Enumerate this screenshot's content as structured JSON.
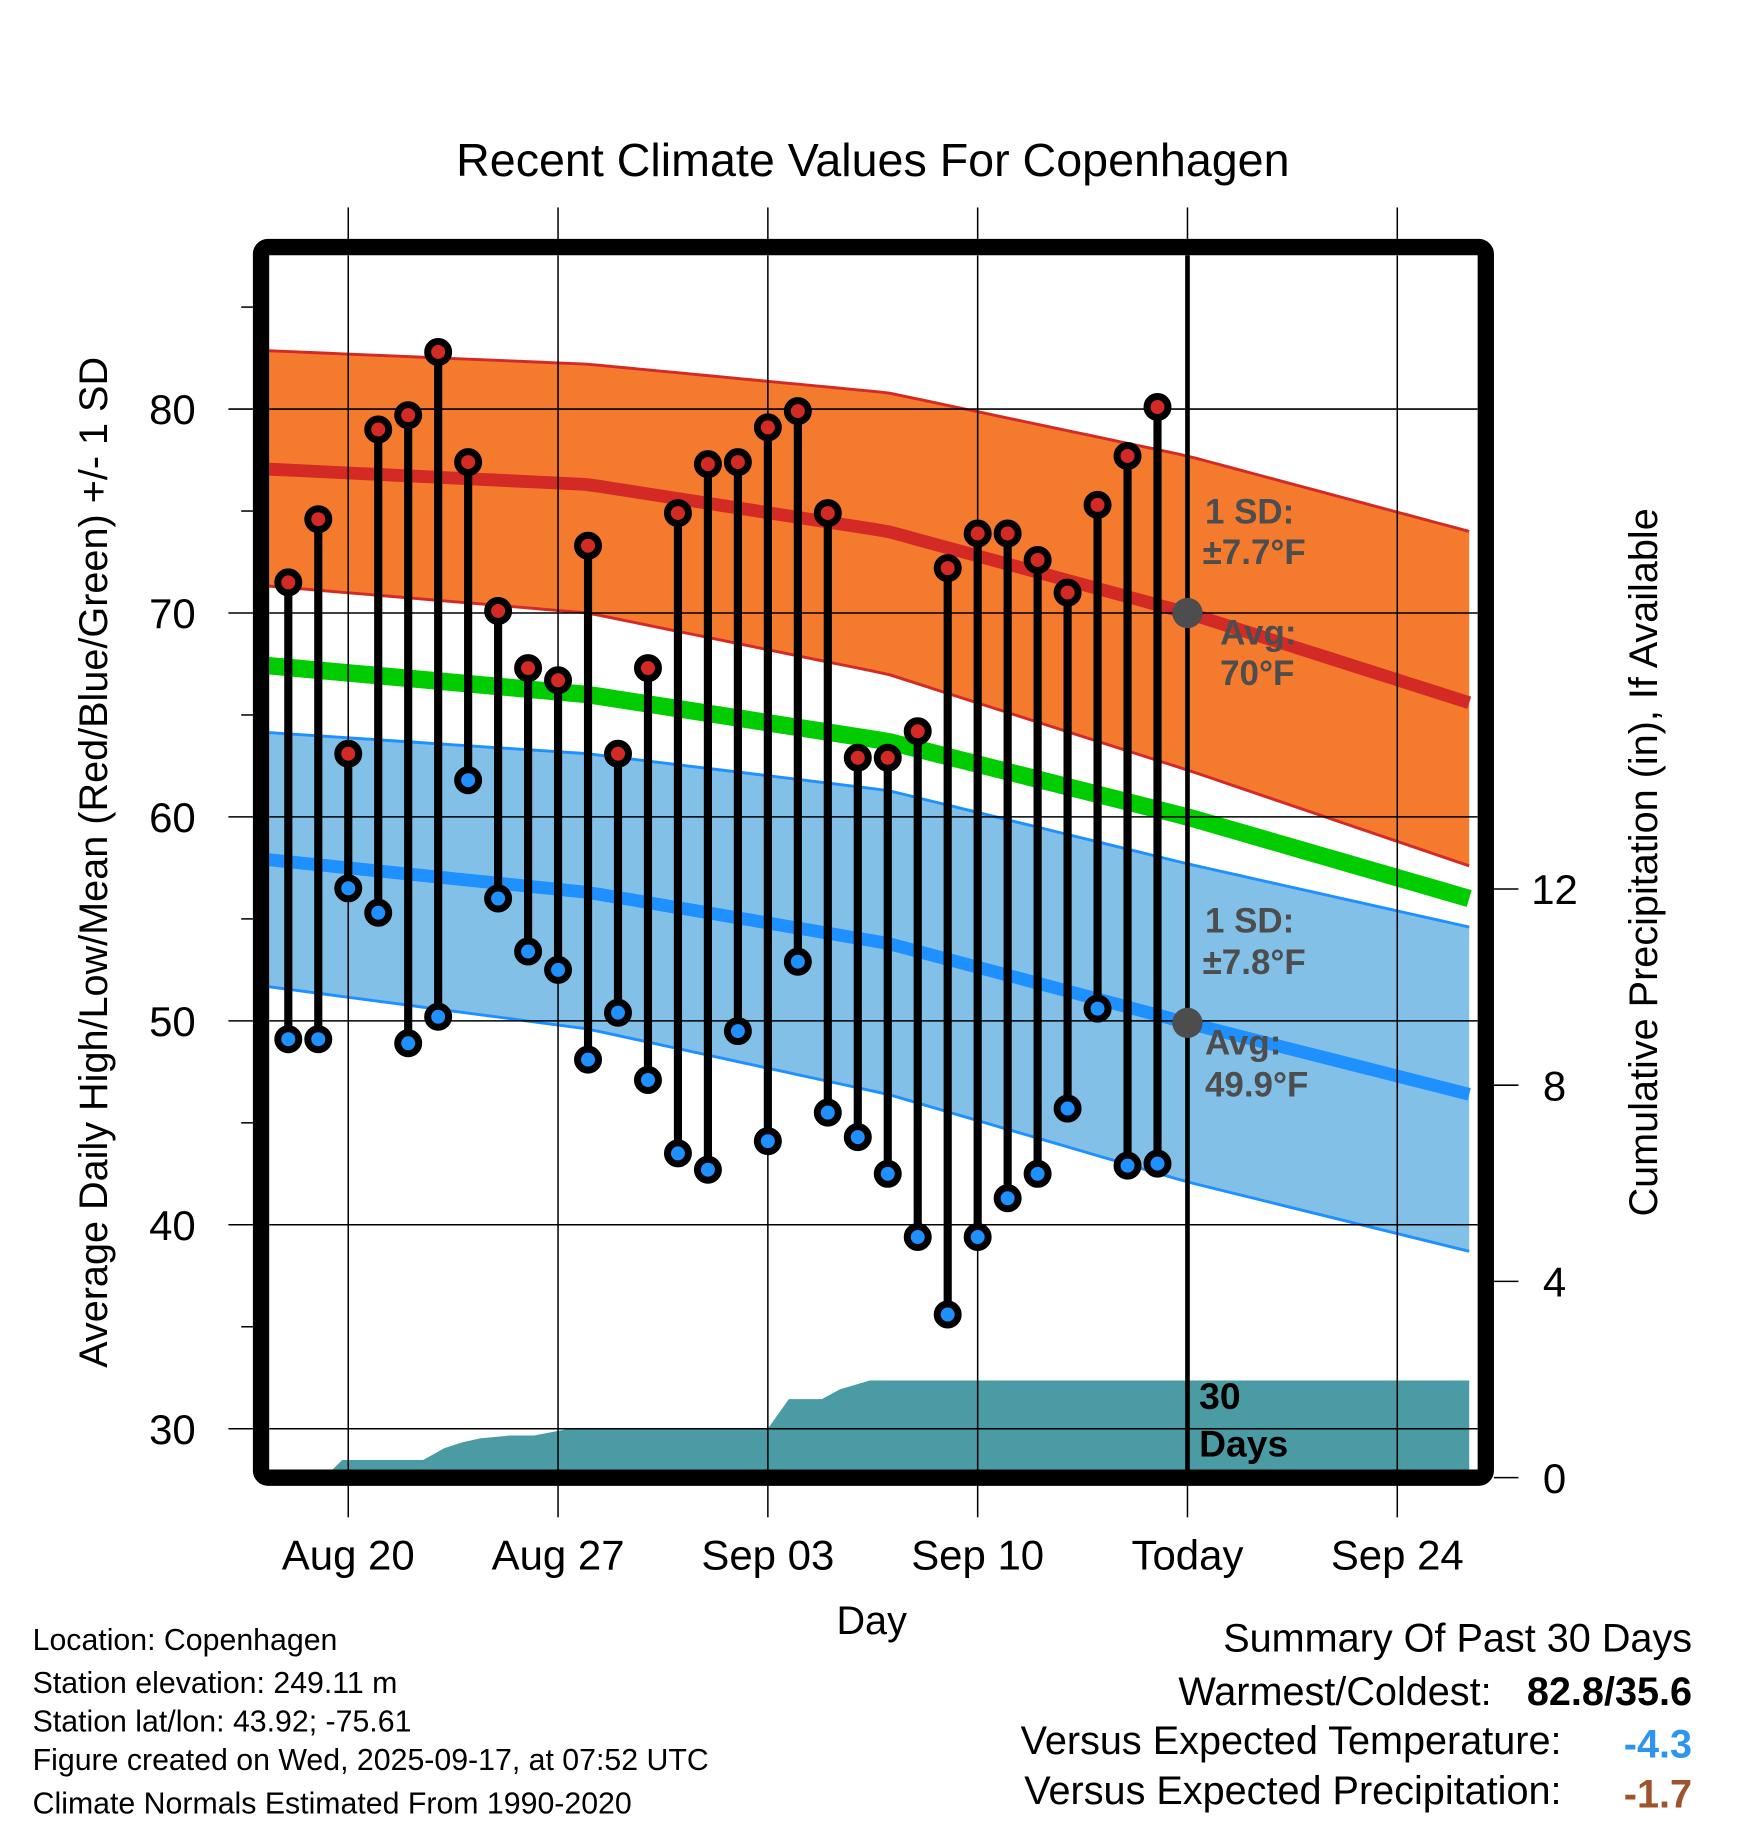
{
  "chart_data": {
    "type": "line",
    "title": "Recent Climate Values For Copenhagen",
    "xlabel": "Day",
    "ylabel": "Average Daily High/Low/Mean (Red/Blue/Green) +/- 1 SD",
    "y2label": "Cumulative Precipitation (in), If Available",
    "ylim": [
      27.5,
      88.5
    ],
    "y_ticks": [
      30,
      40,
      50,
      60,
      70,
      80
    ],
    "y2lim": [
      0,
      18
    ],
    "y2_ticks": [
      0,
      4,
      8,
      12
    ],
    "x_start_day_offset": -31.3,
    "x_end_day_offset": 9.4,
    "x_ticks": [
      {
        "label": "Aug 20",
        "offset": -28
      },
      {
        "label": "Aug 27",
        "offset": -21
      },
      {
        "label": "Sep 03",
        "offset": -14
      },
      {
        "label": "Sep 10",
        "offset": -7
      },
      {
        "label": "Today",
        "offset": 0
      },
      {
        "label": "Sep 24",
        "offset": 7
      }
    ],
    "today_label": "Today",
    "days_offsets": [
      -30,
      -29,
      -28,
      -27,
      -26,
      -25,
      -24,
      -23,
      -22,
      -21,
      -20,
      -19,
      -18,
      -17,
      -16,
      -15,
      -14,
      -13,
      -12,
      -11,
      -10,
      -9,
      -8,
      -7,
      -6,
      -5,
      -4,
      -3,
      -2,
      -1
    ],
    "series": [
      {
        "name": "Daily High",
        "color": "#d42a26",
        "values": [
          71.5,
          74.6,
          63.1,
          79.0,
          79.7,
          82.8,
          77.4,
          70.1,
          67.3,
          66.7,
          73.3,
          63.1,
          67.3,
          74.9,
          77.3,
          77.4,
          79.1,
          79.9,
          74.9,
          62.9,
          62.9,
          64.2,
          72.2,
          73.9,
          73.9,
          72.6,
          71.0,
          75.3,
          77.7,
          80.1
        ]
      },
      {
        "name": "Daily Low",
        "color": "#1e90ff",
        "values": [
          49.1,
          49.1,
          56.5,
          55.3,
          48.9,
          50.2,
          61.8,
          56.0,
          53.4,
          52.5,
          48.1,
          50.4,
          47.1,
          43.5,
          42.7,
          49.5,
          44.1,
          52.9,
          45.5,
          44.3,
          42.5,
          39.4,
          35.6,
          39.4,
          41.3,
          42.5,
          45.7,
          50.6,
          42.9,
          43.0
        ]
      }
    ],
    "normals": {
      "offsets": [
        -31.3,
        -20,
        -10,
        0,
        9.4
      ],
      "high_avg": [
        77.1,
        76.3,
        74.0,
        70.0,
        65.6
      ],
      "high_sd_upper": [
        82.9,
        82.2,
        80.8,
        77.7,
        74.0
      ],
      "high_sd_lower": [
        71.4,
        70.0,
        67.0,
        62.3,
        57.6
      ],
      "mean_avg": [
        67.5,
        66.0,
        63.7,
        60.0,
        56.0
      ],
      "low_avg": [
        58.0,
        56.3,
        53.8,
        49.9,
        46.4
      ],
      "low_sd_upper": [
        64.2,
        63.1,
        61.3,
        57.7,
        54.6
      ],
      "low_sd_lower": [
        51.8,
        49.6,
        46.4,
        42.1,
        38.7
      ],
      "colors": {
        "high_band": "#f47a2d",
        "high_line": "#d42a26",
        "mean_line": "#00cc00",
        "low_band": "#82c0e7",
        "low_line": "#1e90ff"
      }
    },
    "precipitation": {
      "color": "#4a9ba3",
      "offsets": [
        -28.8,
        -28.2,
        -25.5,
        -24.8,
        -24.2,
        -23.6,
        -22.6,
        -21.8,
        -20.6,
        -20.0,
        -14.0,
        -13.3,
        -12.2,
        -11.6,
        -10.6,
        9.4
      ],
      "values": [
        0.0,
        0.36,
        0.36,
        0.6,
        0.72,
        0.8,
        0.86,
        0.86,
        1.0,
        1.0,
        1.0,
        1.6,
        1.6,
        1.8,
        1.98,
        1.98
      ]
    },
    "annotations": {
      "high_sd": {
        "line1": "1 SD:",
        "line2": "±7.7°F"
      },
      "high_avg": {
        "line1": "Avg:",
        "line2": "70°F",
        "value": 70.0
      },
      "low_sd": {
        "line1": "1 SD:",
        "line2": "±7.8°F"
      },
      "low_avg": {
        "line1": "Avg:",
        "line2": "49.9°F",
        "value": 49.9
      },
      "days": {
        "line1": "30",
        "line2": "Days"
      }
    },
    "grid": true,
    "legend": "none"
  },
  "info": {
    "location": "Location: Copenhagen",
    "elevation": "Station elevation: 249.11 m",
    "latlon": "Station lat/lon: 43.92; -75.61",
    "created": "Figure created on Wed, 2025-09-17, at 07:52 UTC",
    "normals": "Climate Normals Estimated From 1990-2020"
  },
  "summary": {
    "title": "Summary Of Past 30 Days",
    "warm_cold_label": "Warmest/Coldest:",
    "warm_cold_value": "82.8/35.6",
    "temp_label": "Versus Expected Temperature:",
    "temp_value": "-4.3",
    "temp_color": "#2e95ee",
    "precip_label": "Versus Expected Precipitation:",
    "precip_value": "-1.7",
    "precip_color": "#a0522d"
  }
}
